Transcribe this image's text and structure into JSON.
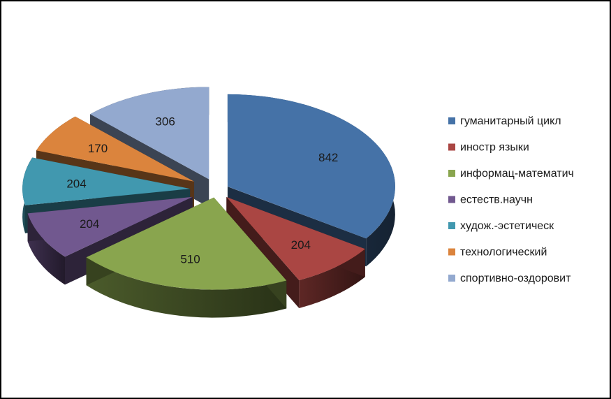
{
  "chart_data": {
    "type": "pie",
    "title": "",
    "three_d": true,
    "exploded": true,
    "legend_position": "right",
    "categories": [
      "гуманитарный цикл",
      "иностр языки",
      "информац-математич",
      "естеств.научн",
      "худож.-эстетическ",
      "технологический",
      "спортивно-оздоровит"
    ],
    "values": [
      842,
      204,
      510,
      204,
      204,
      170,
      306
    ],
    "colors": [
      "#4572A7",
      "#AA4643",
      "#89A54E",
      "#71588F",
      "#4198AF",
      "#DB843D",
      "#93A9CF"
    ]
  }
}
